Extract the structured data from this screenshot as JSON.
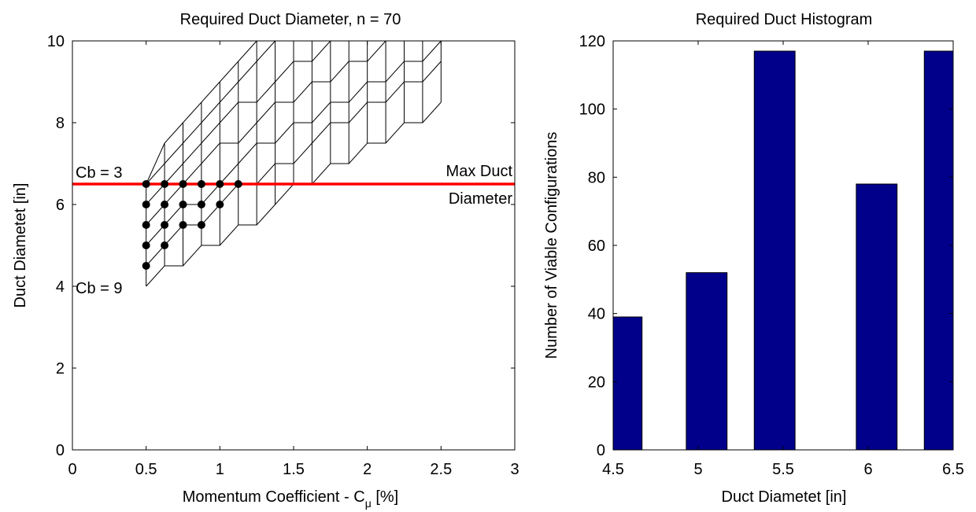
{
  "chart_data": [
    {
      "type": "scatter",
      "title": "Required Duct Diameter, n = 70",
      "xlabel": "Momentum Coefficient - C",
      "xlabel_sub": "μ",
      "xlabel_unit": " [%]",
      "ylabel": "Duct Diametet [in]",
      "xlim": [
        0,
        3
      ],
      "ylim": [
        0,
        10
      ],
      "xticks": [
        "0",
        "0.5",
        "1",
        "1.5",
        "2",
        "2.5",
        "3"
      ],
      "xtick_values": [
        0,
        0.5,
        1,
        1.5,
        2,
        2.5,
        3
      ],
      "yticks": [
        "0",
        "2",
        "4",
        "6",
        "8",
        "10"
      ],
      "ytick_values": [
        0,
        2,
        4,
        6,
        8,
        10
      ],
      "mesh": {
        "cmu": [
          0.5,
          0.625,
          0.75,
          0.875,
          1.0,
          1.125,
          1.25,
          1.375,
          1.5,
          1.625,
          1.75,
          1.875,
          2.0,
          2.125,
          2.25,
          2.375,
          2.5
        ],
        "rows": [
          [
            4.0,
            4.5,
            4.5,
            5.0,
            5.0,
            5.5,
            5.5,
            6.0,
            6.5,
            6.5,
            7.0,
            7.0,
            7.5,
            7.5,
            8.0,
            8.0,
            8.5
          ],
          [
            4.5,
            5.0,
            5.5,
            5.5,
            6.0,
            6.5,
            6.5,
            7.0,
            7.0,
            7.5,
            8.0,
            8.0,
            8.5,
            8.5,
            9.0,
            9.0,
            9.5
          ],
          [
            5.0,
            5.5,
            6.0,
            6.0,
            6.5,
            7.0,
            7.5,
            7.5,
            8.0,
            8.0,
            8.5,
            8.5,
            9.0,
            9.0,
            9.5,
            9.5,
            10.0
          ],
          [
            5.5,
            6.0,
            6.5,
            7.0,
            7.5,
            7.5,
            8.0,
            8.5,
            8.5,
            9.0,
            9.0,
            9.5,
            9.5,
            10.0,
            10.0,
            10.0,
            10.0
          ],
          [
            6.0,
            6.5,
            7.0,
            7.5,
            8.0,
            8.5,
            8.5,
            9.0,
            9.5,
            9.5,
            10.0,
            10.0,
            10.0,
            10.0,
            10.0,
            10.0,
            10.0
          ],
          [
            6.5,
            7.0,
            7.5,
            8.0,
            8.5,
            9.0,
            9.5,
            10.0,
            10.0,
            10.0,
            10.0,
            10.0,
            10.0,
            10.0,
            10.0,
            10.0,
            10.0
          ],
          [
            6.5,
            7.5,
            8.0,
            8.5,
            9.0,
            9.5,
            10.0,
            10.0,
            10.0,
            10.0,
            10.0,
            10.0,
            10.0,
            10.0,
            10.0,
            10.0,
            10.0
          ]
        ]
      },
      "points": [
        [
          0.5,
          6.5
        ],
        [
          0.625,
          6.5
        ],
        [
          0.75,
          6.5
        ],
        [
          0.875,
          6.5
        ],
        [
          1.0,
          6.5
        ],
        [
          1.125,
          6.5
        ],
        [
          0.5,
          6.0
        ],
        [
          0.625,
          6.0
        ],
        [
          0.75,
          6.0
        ],
        [
          0.875,
          6.0
        ],
        [
          1.0,
          6.0
        ],
        [
          0.5,
          5.5
        ],
        [
          0.625,
          5.5
        ],
        [
          0.75,
          5.5
        ],
        [
          0.875,
          5.5
        ],
        [
          0.5,
          5.0
        ],
        [
          0.625,
          5.0
        ],
        [
          0.5,
          4.5
        ]
      ],
      "max_line": {
        "y": 6.5,
        "color": "#ff0000",
        "label_line1": "Max Duct",
        "label_line2": "Diameter"
      },
      "annotations": [
        {
          "text": "Cb = 3",
          "x": 0.5,
          "y": 6.5
        },
        {
          "text": "Cb = 9",
          "x": 0.5,
          "y": 4.0
        }
      ],
      "grid": false
    },
    {
      "type": "bar",
      "title": "Required Duct Histogram",
      "xlabel": "Duct Diametet [in]",
      "ylabel": "Number of Viable Configurations",
      "x": [
        4.55,
        5.05,
        5.45,
        6.05,
        6.45
      ],
      "values": [
        39,
        52,
        117,
        78,
        117
      ],
      "bar_width": 0.24,
      "xlim": [
        4.5,
        6.5
      ],
      "ylim": [
        0,
        120
      ],
      "xticks": [
        "4.5",
        "5",
        "5.5",
        "6",
        "6.5"
      ],
      "xtick_values": [
        4.5,
        5,
        5.5,
        6,
        6.5
      ],
      "yticks": [
        "0",
        "20",
        "40",
        "60",
        "80",
        "100",
        "120"
      ],
      "ytick_values": [
        0,
        20,
        40,
        60,
        80,
        100,
        120
      ],
      "bar_color": "#00008b",
      "grid": false
    }
  ]
}
